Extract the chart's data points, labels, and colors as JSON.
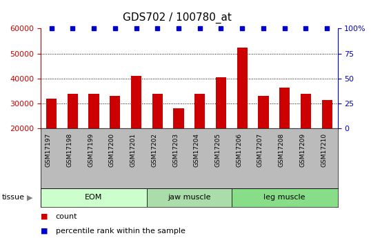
{
  "title": "GDS702 / 100780_at",
  "samples": [
    "GSM17197",
    "GSM17198",
    "GSM17199",
    "GSM17200",
    "GSM17201",
    "GSM17202",
    "GSM17203",
    "GSM17204",
    "GSM17205",
    "GSM17206",
    "GSM17207",
    "GSM17208",
    "GSM17209",
    "GSM17210"
  ],
  "counts": [
    32000,
    34000,
    34000,
    33000,
    41000,
    34000,
    28000,
    34000,
    40500,
    52500,
    33000,
    36500,
    34000,
    31500
  ],
  "percentiles": [
    100,
    100,
    100,
    100,
    100,
    100,
    100,
    100,
    100,
    100,
    100,
    100,
    100,
    100
  ],
  "bar_color": "#cc0000",
  "marker_color": "#0000cc",
  "ylim_left": [
    20000,
    60000
  ],
  "ylim_right": [
    0,
    100
  ],
  "yticks_left": [
    20000,
    30000,
    40000,
    50000,
    60000
  ],
  "yticks_right": [
    0,
    25,
    50,
    75,
    100
  ],
  "ytick_labels_right": [
    "0",
    "25",
    "50",
    "75",
    "100%"
  ],
  "grid_values": [
    30000,
    40000,
    50000
  ],
  "tissue_groups": [
    {
      "label": "EOM",
      "start": 0,
      "end": 5
    },
    {
      "label": "jaw muscle",
      "start": 5,
      "end": 9
    },
    {
      "label": "leg muscle",
      "start": 9,
      "end": 14
    }
  ],
  "tissue_colors": [
    "#ccffcc",
    "#aaddaa",
    "#88dd88"
  ],
  "tissue_label": "tissue",
  "legend_count_label": "count",
  "legend_percentile_label": "percentile rank within the sample",
  "bg_color": "#ffffff",
  "label_area_color": "#bbbbbb",
  "bar_width": 0.5
}
